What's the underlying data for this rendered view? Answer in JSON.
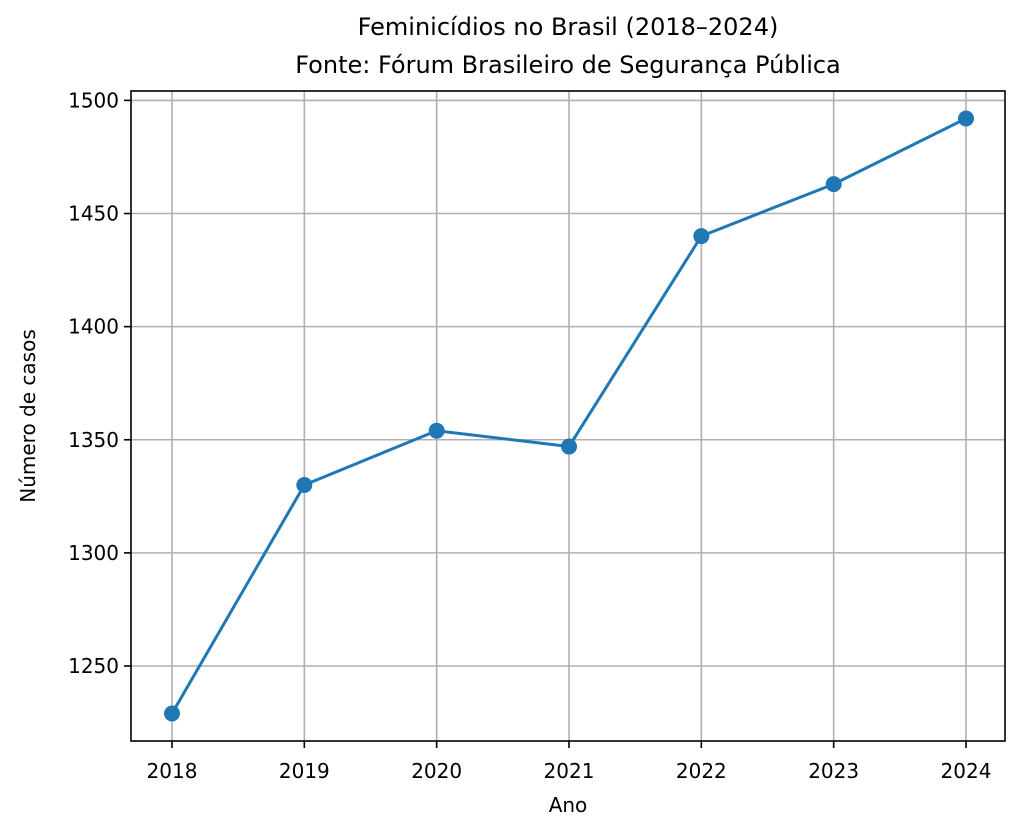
{
  "chart_data": {
    "type": "line",
    "title": "Feminicídios no Brasil (2018–2024)",
    "subtitle": "Fonte: Fórum Brasileiro de Segurança Pública",
    "xlabel": "Ano",
    "ylabel": "Número de casos",
    "x": [
      "2018",
      "2019",
      "2020",
      "2021",
      "2022",
      "2023",
      "2024"
    ],
    "series": [
      {
        "values": [
          1229,
          1330,
          1354,
          1347,
          1440,
          1463,
          1492
        ],
        "color": "#1f77b4",
        "marker": "circle"
      }
    ],
    "yticks": [
      1250,
      1300,
      1350,
      1400,
      1450,
      1500
    ],
    "ylim": [
      1216.85,
      1504.15
    ],
    "grid": true,
    "legend": "none"
  }
}
